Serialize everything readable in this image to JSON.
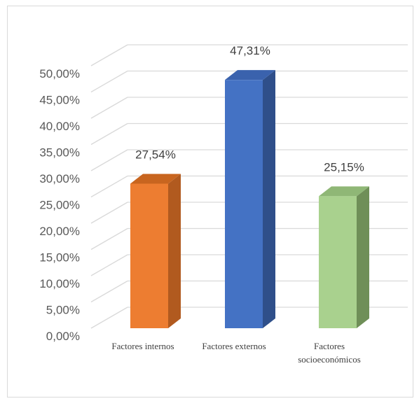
{
  "chart_data": {
    "type": "bar",
    "style": "3d-column",
    "categories": [
      [
        "Factores internos"
      ],
      [
        "Factores externos"
      ],
      [
        "Factores",
        "socioeconómicos"
      ]
    ],
    "values": [
      27.54,
      47.31,
      25.15
    ],
    "data_labels": [
      "27,54%",
      "47,31%",
      "25,15%"
    ],
    "y_ticks": [
      "0,00%",
      "5,00%",
      "10,00%",
      "15,00%",
      "20,00%",
      "25,00%",
      "30,00%",
      "35,00%",
      "40,00%",
      "45,00%",
      "50,00%"
    ],
    "ylim": [
      0,
      50
    ],
    "grid": true,
    "legend": "none",
    "colors": {
      "bars": [
        "#ed7d31",
        "#4472c4",
        "#a9d18e"
      ],
      "bar_sides": [
        "#b15a1f",
        "#2f4f8a",
        "#6f8f58"
      ],
      "bar_tops": [
        "#c8651f",
        "#3a62ad",
        "#8fb776"
      ],
      "gridline": "#d9d9d9",
      "text": "#595959"
    }
  }
}
